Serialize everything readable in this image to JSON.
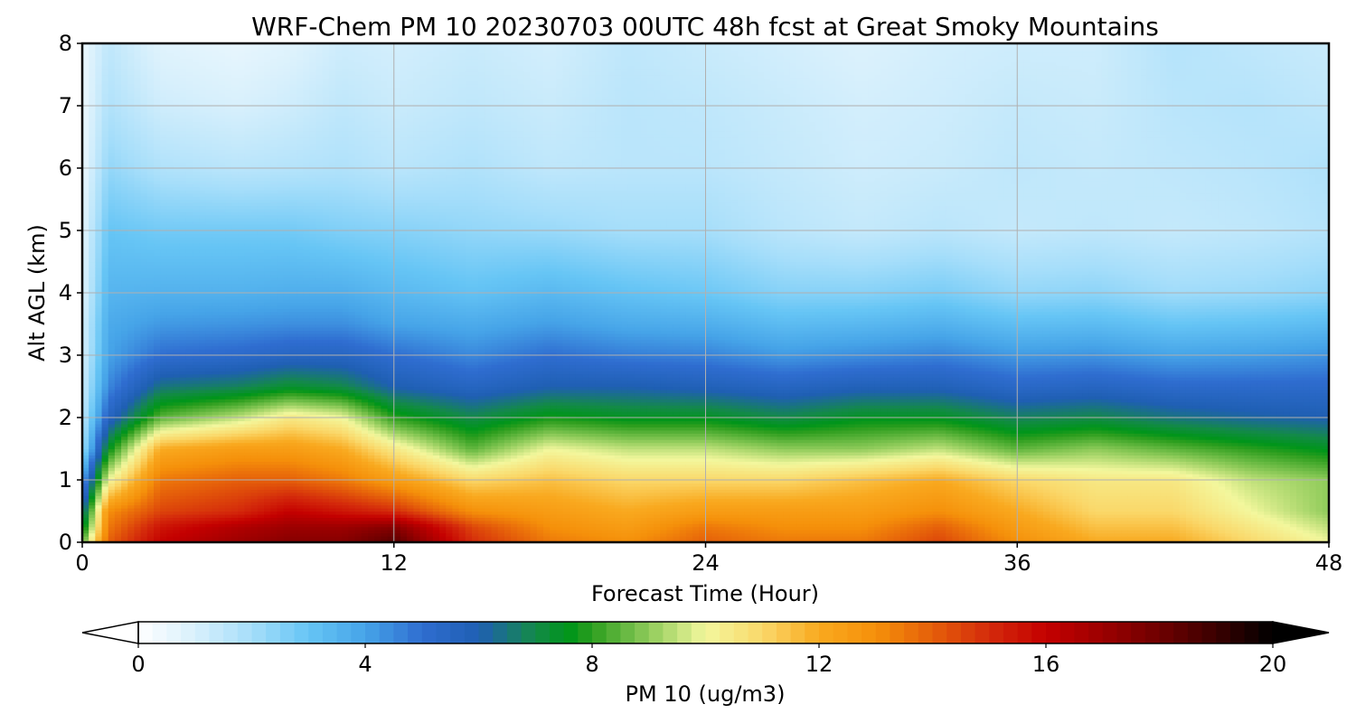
{
  "chart_data": {
    "type": "heatmap",
    "title": "WRF-Chem PM 10  20230703 00UTC 48h fcst at Great Smoky Mountains",
    "xlabel": "Forecast Time (Hour)",
    "ylabel": "Alt AGL (km)",
    "xlim": [
      0,
      48
    ],
    "ylim": [
      0,
      8
    ],
    "x_ticks": [
      0,
      12,
      24,
      36,
      48
    ],
    "y_ticks": [
      0,
      1,
      2,
      3,
      4,
      5,
      6,
      7,
      8
    ],
    "grid": true,
    "colorbar": {
      "label": "PM 10  (ug/m3)",
      "min": 0,
      "max": 20,
      "ticks": [
        0,
        4,
        8,
        12,
        16,
        20
      ],
      "extend": "both",
      "orientation": "horizontal",
      "placement": "bottom",
      "colormap_stops": [
        {
          "value": 0,
          "color": "#ffffff"
        },
        {
          "value": 1,
          "color": "#d8f0fc"
        },
        {
          "value": 2,
          "color": "#a6defa"
        },
        {
          "value": 3,
          "color": "#66c5f5"
        },
        {
          "value": 4,
          "color": "#46a4e8"
        },
        {
          "value": 5,
          "color": "#2f6dd0"
        },
        {
          "value": 6,
          "color": "#1f5fb3"
        },
        {
          "value": 7,
          "color": "#138a47"
        },
        {
          "value": 7.6,
          "color": "#00951a"
        },
        {
          "value": 8,
          "color": "#2d9e1e"
        },
        {
          "value": 9,
          "color": "#8fcb5a"
        },
        {
          "value": 10,
          "color": "#f3f79d"
        },
        {
          "value": 11,
          "color": "#fad86a"
        },
        {
          "value": 12,
          "color": "#f9a91f"
        },
        {
          "value": 13,
          "color": "#f5900a"
        },
        {
          "value": 14,
          "color": "#e55f0a"
        },
        {
          "value": 15,
          "color": "#d42a0b"
        },
        {
          "value": 16,
          "color": "#c40000"
        },
        {
          "value": 17,
          "color": "#9c0000"
        },
        {
          "value": 18,
          "color": "#6e0000"
        },
        {
          "value": 19,
          "color": "#3a0000"
        },
        {
          "value": 20,
          "color": "#000000"
        }
      ]
    },
    "field": {
      "hours": [
        0,
        1,
        3,
        6,
        8,
        10,
        12,
        15,
        18,
        21,
        24,
        27,
        30,
        33,
        36,
        39,
        42,
        45,
        48
      ],
      "altitudes_km": [
        0,
        0.25,
        0.5,
        1,
        1.5,
        2,
        2.5,
        3,
        3.5,
        4,
        5,
        6,
        7,
        8
      ],
      "values": [
        [
          8.5,
          14,
          16,
          17,
          17.5,
          17.5,
          18.5,
          15,
          13.5,
          13,
          14,
          13.5,
          13.5,
          14.5,
          13,
          12,
          12,
          11,
          10
        ],
        [
          7,
          13.5,
          15.5,
          16.5,
          17,
          17,
          17.5,
          14.5,
          13,
          12.5,
          13.5,
          13,
          13,
          14,
          12.5,
          11.5,
          11.5,
          10.5,
          9.5
        ],
        [
          6,
          13,
          14.5,
          15,
          16,
          15.5,
          15,
          13,
          12.5,
          12,
          12.5,
          12.5,
          12.5,
          13,
          12,
          11,
          11,
          10,
          9
        ],
        [
          4,
          10,
          13.5,
          14,
          14,
          13.5,
          12.5,
          11,
          11.5,
          11,
          11,
          11,
          11.5,
          12,
          11,
          10.5,
          10.5,
          9.5,
          9
        ],
        [
          2,
          7.5,
          12,
          12.5,
          12.5,
          12,
          10.5,
          8.5,
          10,
          9.5,
          9.5,
          9,
          9,
          9.5,
          8.5,
          9,
          8.5,
          8,
          7.5
        ],
        [
          1.5,
          5.5,
          8.5,
          9.5,
          10.5,
          10,
          8,
          7,
          7.8,
          7.5,
          7.5,
          7,
          7.5,
          7.5,
          6.8,
          7,
          6.5,
          6.2,
          6
        ],
        [
          1.2,
          4.5,
          6.5,
          6.8,
          7.3,
          7,
          6,
          5.5,
          6,
          6,
          5.8,
          5.5,
          5.8,
          5.8,
          5.3,
          5.5,
          5.2,
          5.2,
          5.2
        ],
        [
          1,
          4,
          5,
          5.2,
          5.5,
          5.5,
          5,
          4.5,
          5,
          4.7,
          4.6,
          4.2,
          4.4,
          4.6,
          4.2,
          4.3,
          4,
          4.1,
          4.3
        ],
        [
          1,
          3.8,
          4.2,
          4.3,
          4.4,
          4.4,
          4,
          3.8,
          4.1,
          3.8,
          3.7,
          3.3,
          3.4,
          3.6,
          3.2,
          3.3,
          3,
          3.1,
          3.3
        ],
        [
          0.8,
          3.5,
          3.6,
          3.6,
          3.7,
          3.7,
          3.4,
          3.1,
          3.4,
          3.1,
          2.9,
          2.5,
          2.5,
          2.7,
          2.3,
          2.4,
          2.1,
          2.2,
          2.4
        ],
        [
          0.7,
          3,
          2.8,
          2.8,
          2.8,
          2.6,
          2.5,
          2.3,
          2.2,
          2,
          2,
          1.6,
          1.4,
          1.6,
          1.4,
          1.5,
          1.4,
          1.5,
          1.7
        ],
        [
          0.5,
          2.3,
          1.8,
          1.6,
          1.7,
          1.8,
          1.6,
          1.8,
          1.5,
          1.6,
          1.6,
          1.4,
          1.2,
          1.3,
          1.5,
          1.4,
          1.5,
          1.6,
          1.8
        ],
        [
          0.5,
          1.8,
          1.2,
          1,
          1.2,
          1.5,
          1.3,
          1.5,
          1.3,
          1.6,
          1.5,
          1.3,
          1.1,
          1.2,
          1.4,
          1.3,
          1.6,
          1.7,
          1.5
        ],
        [
          0.5,
          1.5,
          0.8,
          0.6,
          0.8,
          1.2,
          1.1,
          1.3,
          1.1,
          1.5,
          1.3,
          1.1,
          0.9,
          1.1,
          1.2,
          1.2,
          1.7,
          1.5,
          1.3
        ]
      ]
    }
  }
}
